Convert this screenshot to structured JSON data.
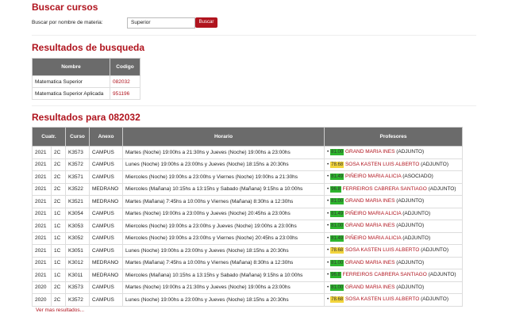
{
  "search": {
    "title": "Buscar cursos",
    "label": "Buscar por nombre de materia:",
    "input_value": "Superior",
    "button": "Buscar"
  },
  "results": {
    "title": "Resultados de busqueda",
    "headers": [
      "Nombre",
      "Codigo"
    ],
    "rows": [
      [
        "Matematica Superior",
        "082032"
      ],
      [
        "Matematica Superior Aplicada",
        "951196"
      ]
    ]
  },
  "course": {
    "title": "Resultados para 082032",
    "headers": [
      "Cuatr.",
      "Curso",
      "Anexo",
      "Horario",
      "Profesores"
    ],
    "rows": [
      {
        "year": "2021",
        "term": "2C",
        "curso": "K3573",
        "anexo": "CAMPUS",
        "horario": "Martes (Noche) 19:00hs a 21:30hs y Jueves (Noche) 19:00hs a 23:00hs",
        "score": "81.00",
        "color": "#2db52d",
        "profesor": "GRAND MARIA INES",
        "rol": "(ADJUNTO)"
      },
      {
        "year": "2021",
        "term": "2C",
        "curso": "K3572",
        "anexo": "CAMPUS",
        "horario": "Lunes (Noche) 19:00hs a 23:00hs y Jueves (Noche) 18:15hs a 20:30hs",
        "score": "78.68",
        "color": "#f2d43c",
        "profesor": "SOSA KASTEN LUIS ALBERTO",
        "rol": "(ADJUNTO)"
      },
      {
        "year": "2021",
        "term": "2C",
        "curso": "K3571",
        "anexo": "CAMPUS",
        "horario": "Miercoles (Noche) 19:00hs a 23:00hs y Viernes (Noche) 19:00hs a 21:30hs",
        "score": "81.49",
        "color": "#2db52d",
        "profesor": "PIÑEIRO MARIA ALICIA",
        "rol": "(ASOCIADO)"
      },
      {
        "year": "2021",
        "term": "2C",
        "curso": "K3522",
        "anexo": "MEDRANO",
        "horario": "Miercoles (Mañana) 10:15hs a 13:15hs y Sabado (Mañana) 9:15hs a 10:00hs",
        "score": "96.8",
        "color": "#2db52d",
        "profesor": "FERREIROS CABRERA SANTIAGO",
        "rol": "(ADJUNTO)"
      },
      {
        "year": "2021",
        "term": "2C",
        "curso": "K3521",
        "anexo": "MEDRANO",
        "horario": "Martes (Mañana) 7:45hs a 10:00hs y Viernes (Mañana) 8:30hs a 12:30hs",
        "score": "81.00",
        "color": "#2db52d",
        "profesor": "GRAND MARIA INES",
        "rol": "(ADJUNTO)"
      },
      {
        "year": "2021",
        "term": "1C",
        "curso": "K3054",
        "anexo": "CAMPUS",
        "horario": "Martes (Noche) 19:00hs a 23:00hs y Jueves (Noche) 20:45hs a 23:00hs",
        "score": "81.49",
        "color": "#2db52d",
        "profesor": "PIÑEIRO MARIA ALICIA",
        "rol": "(ADJUNTO)"
      },
      {
        "year": "2021",
        "term": "1C",
        "curso": "K3053",
        "anexo": "CAMPUS",
        "horario": "Miercoles (Noche) 19:00hs a 23:00hs y Jueves (Noche) 19:00hs a 23:00hs",
        "score": "81.00",
        "color": "#2db52d",
        "profesor": "GRAND MARIA INES",
        "rol": "(ADJUNTO)"
      },
      {
        "year": "2021",
        "term": "1C",
        "curso": "K3052",
        "anexo": "CAMPUS",
        "horario": "Miercoles (Noche) 19:00hs a 23:00hs y Viernes (Noche) 20:45hs a 23:00hs",
        "score": "81.49",
        "color": "#2db52d",
        "profesor": "PIÑEIRO MARIA ALICIA",
        "rol": "(ADJUNTO)"
      },
      {
        "year": "2021",
        "term": "1C",
        "curso": "K3051",
        "anexo": "CAMPUS",
        "horario": "Lunes (Noche) 19:00hs a 23:00hs y Jueves (Noche) 18:15hs a 20:30hs",
        "score": "78.68",
        "color": "#f2d43c",
        "profesor": "SOSA KASTEN LUIS ALBERTO",
        "rol": "(ADJUNTO)"
      },
      {
        "year": "2021",
        "term": "1C",
        "curso": "K3012",
        "anexo": "MEDRANO",
        "horario": "Martes (Mañana) 7:45hs a 10:00hs y Viernes (Mañana) 8:30hs a 12:30hs",
        "score": "81.00",
        "color": "#2db52d",
        "profesor": "GRAND MARIA INES",
        "rol": "(ADJUNTO)"
      },
      {
        "year": "2021",
        "term": "1C",
        "curso": "K3011",
        "anexo": "MEDRANO",
        "horario": "Miercoles (Mañana) 10:15hs a 13:15hs y Sabado (Mañana) 9:15hs a 10:00hs",
        "score": "96.8",
        "color": "#2db52d",
        "profesor": "FERREIROS CABRERA SANTIAGO",
        "rol": "(ADJUNTO)"
      },
      {
        "year": "2020",
        "term": "2C",
        "curso": "K3573",
        "anexo": "CAMPUS",
        "horario": "Martes (Noche) 19:00hs a 21:30hs y Jueves (Noche) 19:00hs a 23:00hs",
        "score": "81.00",
        "color": "#2db52d",
        "profesor": "GRAND MARIA INES",
        "rol": "(ADJUNTO)"
      },
      {
        "year": "2020",
        "term": "2C",
        "curso": "K3572",
        "anexo": "CAMPUS",
        "horario": "Lunes (Noche) 19:00hs a 23:00hs y Jueves (Noche) 18:15hs a 20:30hs",
        "score": "78.68",
        "color": "#f2d43c",
        "profesor": "SOSA KASTEN LUIS ALBERTO",
        "rol": "(ADJUNTO)"
      }
    ],
    "more": "Ver mas resultados..."
  }
}
